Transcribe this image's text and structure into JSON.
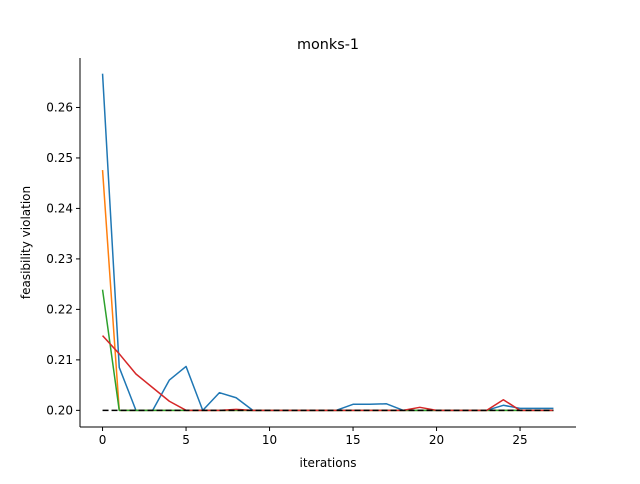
{
  "chart_data": {
    "type": "line",
    "title": "monks-1",
    "xlabel": "iterations",
    "ylabel": "feasibility violation",
    "xlim": [
      -1.35,
      28.35
    ],
    "ylim": [
      0.1967,
      0.2698
    ],
    "xticks": [
      0,
      5,
      10,
      15,
      20,
      25
    ],
    "yticks": [
      0.2,
      0.21,
      0.22,
      0.23,
      0.24,
      0.25,
      0.26
    ],
    "ytick_labels": [
      "0.20",
      "0.21",
      "0.22",
      "0.23",
      "0.24",
      "0.25",
      "0.26"
    ],
    "grid": false,
    "legend": false,
    "series": [
      {
        "color": "#1f77b4",
        "x": [
          0,
          1,
          2,
          3,
          4,
          5,
          6,
          7,
          8,
          9,
          10,
          11,
          12,
          13,
          14,
          15,
          16,
          17,
          18,
          19,
          20,
          21,
          22,
          23,
          24,
          25,
          26,
          27
        ],
        "y": [
          0.2667,
          0.2085,
          0.2,
          0.2,
          0.206,
          0.2087,
          0.2,
          0.2035,
          0.2025,
          0.2,
          0.2,
          0.2,
          0.2,
          0.2,
          0.2,
          0.2012,
          0.2012,
          0.2013,
          0.2,
          0.2,
          0.2,
          0.2,
          0.2,
          0.2,
          0.201,
          0.2004,
          0.2004,
          0.2004
        ]
      },
      {
        "color": "#ff7f0e",
        "x": [
          0,
          1,
          2,
          3,
          4,
          5,
          6,
          7,
          8,
          9,
          10,
          11,
          12,
          13,
          14,
          15,
          16,
          17,
          18,
          19,
          20,
          21,
          22,
          23,
          24,
          25,
          26,
          27
        ],
        "y": [
          0.2476,
          0.2,
          0.2,
          0.2,
          0.2,
          0.2,
          0.2,
          0.2,
          0.2,
          0.2,
          0.2,
          0.2,
          0.2,
          0.2,
          0.2,
          0.2,
          0.2,
          0.2,
          0.2,
          0.2,
          0.2,
          0.2,
          0.2,
          0.2,
          0.2,
          0.2,
          0.2,
          0.2
        ]
      },
      {
        "color": "#2ca02c",
        "x": [
          0,
          1,
          2,
          3,
          4,
          5,
          6,
          7,
          8,
          9,
          10,
          11,
          12,
          13,
          14,
          15,
          16,
          17,
          18,
          19,
          20,
          21,
          22,
          23,
          24,
          25,
          26,
          27
        ],
        "y": [
          0.2239,
          0.2,
          0.2,
          0.2,
          0.2,
          0.2,
          0.2,
          0.2,
          0.2,
          0.2,
          0.2,
          0.2,
          0.2,
          0.2,
          0.2,
          0.2,
          0.2,
          0.2,
          0.2,
          0.2,
          0.2,
          0.2,
          0.2,
          0.2,
          0.2,
          0.2,
          0.2,
          0.2
        ]
      },
      {
        "color": "#d62728",
        "x": [
          0,
          1,
          2,
          3,
          4,
          5,
          6,
          7,
          8,
          9,
          10,
          11,
          12,
          13,
          14,
          15,
          16,
          17,
          18,
          19,
          20,
          21,
          22,
          23,
          24,
          25,
          26,
          27
        ],
        "y": [
          0.2148,
          0.2112,
          0.2072,
          0.2045,
          0.2018,
          0.2,
          0.2,
          0.2,
          0.2002,
          0.2,
          0.2,
          0.2,
          0.2,
          0.2,
          0.2,
          0.2,
          0.2,
          0.2,
          0.2,
          0.2006,
          0.2,
          0.2,
          0.2,
          0.2,
          0.2021,
          0.2,
          0.2,
          0.2
        ]
      },
      {
        "color": "#000000",
        "dashed": true,
        "x": [
          0,
          27
        ],
        "y": [
          0.2,
          0.2
        ]
      }
    ]
  }
}
